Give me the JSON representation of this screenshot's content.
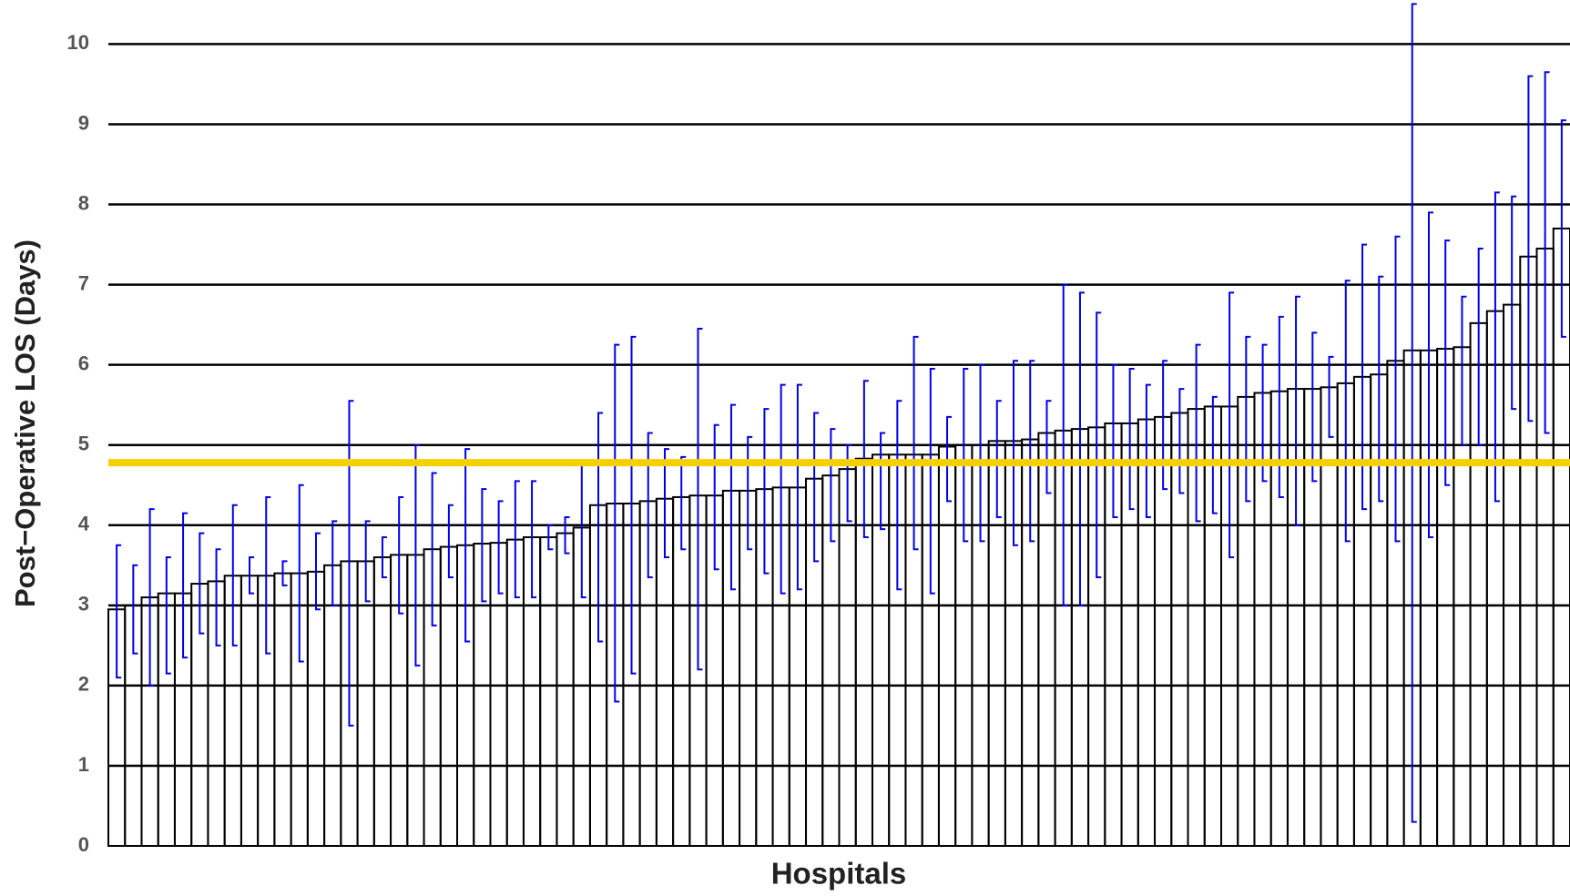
{
  "chart_data": {
    "type": "bar",
    "y_label": "Post−Operative LOS (Days)",
    "x_label": "Hospitals",
    "color": "#000000",
    "error_color": "#0000ee",
    "reference_line": {
      "value": 4.78,
      "color": "#f5d000"
    },
    "grid": true,
    "ylim": [
      0,
      10.55
    ],
    "yticks": [
      0,
      1,
      2,
      3,
      4,
      5,
      6,
      7,
      8,
      9,
      10
    ],
    "values": [
      2.95,
      3.0,
      3.1,
      3.15,
      3.15,
      3.27,
      3.3,
      3.37,
      3.37,
      3.37,
      3.4,
      3.4,
      3.42,
      3.5,
      3.55,
      3.55,
      3.6,
      3.63,
      3.63,
      3.7,
      3.73,
      3.75,
      3.77,
      3.78,
      3.82,
      3.85,
      3.85,
      3.9,
      3.97,
      4.25,
      4.27,
      4.27,
      4.3,
      4.33,
      4.35,
      4.37,
      4.37,
      4.43,
      4.43,
      4.45,
      4.47,
      4.47,
      4.58,
      4.62,
      4.7,
      4.83,
      4.88,
      4.88,
      4.88,
      4.88,
      4.98,
      5.0,
      5.0,
      5.05,
      5.05,
      5.07,
      5.15,
      5.18,
      5.2,
      5.22,
      5.27,
      5.27,
      5.32,
      5.35,
      5.4,
      5.45,
      5.48,
      5.48,
      5.6,
      5.65,
      5.67,
      5.7,
      5.7,
      5.72,
      5.77,
      5.85,
      5.88,
      6.05,
      6.18,
      6.18,
      6.2,
      6.22,
      6.52,
      6.67,
      6.75,
      7.35,
      7.45,
      7.7
    ],
    "lower": [
      2.1,
      2.4,
      2.0,
      2.15,
      2.35,
      2.65,
      2.5,
      2.5,
      3.15,
      2.4,
      3.25,
      2.3,
      2.95,
      3.0,
      1.5,
      3.05,
      3.35,
      2.9,
      2.25,
      2.75,
      3.35,
      2.55,
      3.05,
      3.15,
      3.1,
      3.1,
      3.7,
      3.65,
      3.1,
      2.55,
      1.8,
      2.15,
      3.35,
      3.6,
      3.7,
      2.2,
      3.45,
      3.2,
      3.7,
      3.4,
      3.15,
      3.2,
      3.55,
      3.8,
      4.05,
      3.85,
      3.95,
      3.2,
      3.7,
      3.15,
      4.3,
      3.8,
      3.8,
      4.1,
      3.75,
      3.8,
      4.4,
      3.0,
      3.0,
      3.35,
      4.1,
      4.2,
      4.1,
      4.45,
      4.4,
      4.05,
      4.15,
      3.6,
      4.3,
      4.55,
      4.35,
      4.0,
      4.55,
      5.1,
      3.8,
      4.2,
      4.3,
      3.8,
      0.3,
      3.85,
      4.5,
      5.0,
      5.0,
      4.3,
      5.45,
      5.3,
      5.15,
      6.35
    ],
    "upper": [
      3.75,
      3.5,
      4.2,
      3.6,
      4.15,
      3.9,
      3.7,
      4.25,
      3.6,
      4.35,
      3.55,
      4.5,
      3.9,
      4.05,
      5.55,
      4.05,
      3.85,
      4.35,
      5.0,
      4.65,
      4.25,
      4.95,
      4.45,
      4.3,
      4.55,
      4.55,
      4.0,
      4.1,
      4.8,
      5.4,
      6.25,
      6.35,
      5.15,
      4.95,
      4.85,
      6.45,
      5.25,
      5.5,
      5.1,
      5.45,
      5.75,
      5.75,
      5.4,
      5.2,
      5.0,
      5.8,
      5.15,
      5.55,
      6.35,
      5.95,
      5.35,
      5.95,
      6.0,
      5.55,
      6.05,
      6.05,
      5.55,
      7.0,
      6.9,
      6.65,
      6.0,
      5.95,
      5.75,
      6.05,
      5.7,
      6.25,
      5.6,
      6.9,
      6.35,
      6.25,
      6.6,
      6.85,
      6.4,
      6.1,
      7.05,
      7.5,
      7.1,
      7.6,
      10.5,
      7.9,
      7.55,
      6.85,
      7.45,
      8.15,
      8.1,
      9.6,
      9.65,
      9.05
    ]
  }
}
